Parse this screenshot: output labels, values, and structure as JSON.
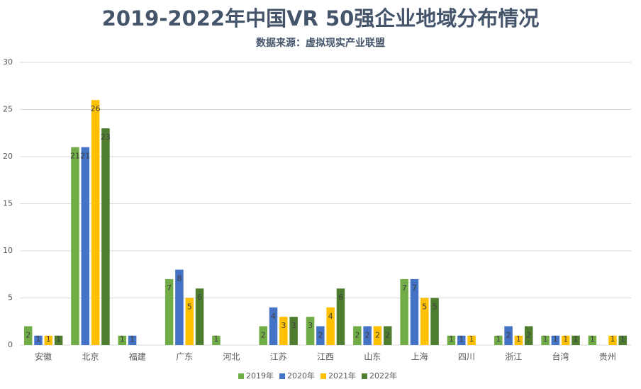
{
  "chart_data": {
    "type": "bar",
    "title": "2019-2022年中国VR 50强企业地域分布情况",
    "subtitle": "数据来源：虚拟现实产业联盟",
    "categories": [
      "安徽",
      "北京",
      "福建",
      "广东",
      "河北",
      "江苏",
      "江西",
      "山东",
      "上海",
      "四川",
      "浙江",
      "台湾",
      "贵州"
    ],
    "series": [
      {
        "name": "2019年",
        "color": "#70ad47",
        "values": [
          2,
          21,
          1,
          7,
          1,
          2,
          3,
          2,
          7,
          1,
          1,
          1,
          1
        ]
      },
      {
        "name": "2020年",
        "color": "#4472c4",
        "values": [
          1,
          21,
          1,
          8,
          null,
          4,
          2,
          2,
          7,
          1,
          2,
          1,
          null
        ]
      },
      {
        "name": "2021年",
        "color": "#ffc000",
        "values": [
          1,
          26,
          null,
          5,
          null,
          3,
          4,
          2,
          5,
          1,
          1,
          1,
          1
        ]
      },
      {
        "name": "2022年",
        "color": "#4e7d2f",
        "values": [
          1,
          23,
          null,
          6,
          null,
          3,
          6,
          2,
          5,
          null,
          2,
          1,
          1
        ]
      }
    ],
    "ylim": [
      0,
      30
    ],
    "yticks": [
      0,
      5,
      10,
      15,
      20,
      25,
      30
    ],
    "grid": true,
    "legend": "bottom"
  }
}
